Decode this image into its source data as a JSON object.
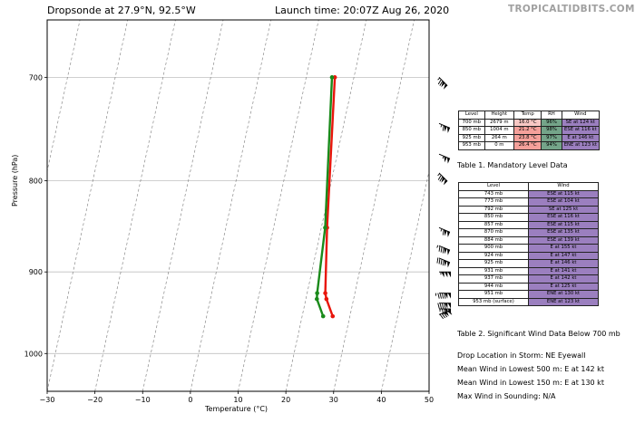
{
  "header": {
    "title_left": "Dropsonde at 27.9°N, 92.5°W",
    "title_right": "Launch time: 20:07Z Aug 26, 2020",
    "brand": "TROPICALTIDBITS.COM"
  },
  "chart_data": {
    "type": "line",
    "title": "Dropsonde at 27.9°N, 92.5°W",
    "xlabel": "Temperature (°C)",
    "ylabel": "Pressure (hPa)",
    "xlim": [
      -30,
      50
    ],
    "ylim": [
      1050,
      650
    ],
    "y_scale": "log",
    "x_ticks": [
      "−30",
      "−20",
      "−10",
      "0",
      "10",
      "20",
      "30",
      "40",
      "50"
    ],
    "x_tick_values": [
      -30,
      -20,
      -10,
      0,
      10,
      20,
      30,
      40,
      50
    ],
    "y_ticks": [
      "700",
      "800",
      "900",
      "1000"
    ],
    "y_tick_values": [
      700,
      800,
      900,
      1000
    ],
    "grid": true,
    "series": [
      {
        "role": "temperature",
        "color": "#e8160c",
        "points": [
          [
            700,
            16.0
          ],
          [
            850,
            21.2
          ],
          [
            925,
            23.8
          ],
          [
            932,
            24.3
          ],
          [
            953,
            26.4
          ]
        ]
      },
      {
        "role": "dewpoint",
        "color": "#1a8a1a",
        "points": [
          [
            700,
            15.4
          ],
          [
            850,
            20.8
          ],
          [
            925,
            22.1
          ],
          [
            932,
            22.3
          ],
          [
            953,
            24.4
          ]
        ]
      }
    ],
    "skew_t": true
  },
  "mandatory_table": {
    "headers": [
      "Level",
      "Height",
      "Temp",
      "RH",
      "Wind"
    ],
    "rows": [
      {
        "level": "700 mb",
        "height": "2679 m",
        "temp": "16.0 °C",
        "rh": "96%",
        "wind": "SE at 124 kt"
      },
      {
        "level": "850 mb",
        "height": "1004 m",
        "temp": "21.2 °C",
        "rh": "98%",
        "wind": "ESE at 116 kt"
      },
      {
        "level": "925 mb",
        "height": "264 m",
        "temp": "23.8 °C",
        "rh": "97%",
        "wind": "E at 146 kt"
      },
      {
        "level": "953 mb",
        "height": "0 m",
        "temp": "26.4 °C",
        "rh": "94%",
        "wind": "ENE at 123 kt"
      }
    ],
    "caption": "Table 1. Mandatory Level Data"
  },
  "wind_table": {
    "headers": [
      "Level",
      "Wind"
    ],
    "rows": [
      {
        "level": "743 mb",
        "wind": "ESE at 115 kt"
      },
      {
        "level": "773 mb",
        "wind": "ESE at 104 kt"
      },
      {
        "level": "792 mb",
        "wind": "SE at 125 kt"
      },
      {
        "level": "850 mb",
        "wind": "ESE at 116 kt"
      },
      {
        "level": "857 mb",
        "wind": "ESE at 115 kt"
      },
      {
        "level": "870 mb",
        "wind": "ESE at 135 kt"
      },
      {
        "level": "884 mb",
        "wind": "ESE at 139 kt"
      },
      {
        "level": "900 mb",
        "wind": "E at 155 kt"
      },
      {
        "level": "924 mb",
        "wind": "E at 147 kt"
      },
      {
        "level": "925 mb",
        "wind": "E at 146 kt"
      },
      {
        "level": "931 mb",
        "wind": "E at 141 kt"
      },
      {
        "level": "937 mb",
        "wind": "E at 142 kt"
      },
      {
        "level": "944 mb",
        "wind": "E at 125 kt"
      },
      {
        "level": "951 mb",
        "wind": "ENE at 130 kt"
      },
      {
        "level": "953 mb (surface)",
        "wind": "ENE at 123 kt"
      }
    ],
    "caption": "Table 2. Significant Wind Data Below 700 mb"
  },
  "info": {
    "line1": "Drop Location in Storm: NE Eyewall",
    "line2": "Mean Wind in Lowest 500 m:  E at 142 kt",
    "line3": "Mean Wind in Lowest 150 m:  E at 130 kt",
    "line4": "Max Wind in Sounding:  N/A"
  },
  "wind_barbs": [
    {
      "level": 700,
      "dir": "SE",
      "speed": 124
    },
    {
      "level": 743,
      "dir": "ESE",
      "speed": 115
    },
    {
      "level": 773,
      "dir": "ESE",
      "speed": 104
    },
    {
      "level": 792,
      "dir": "SE",
      "speed": 125
    },
    {
      "level": 850,
      "dir": "ESE",
      "speed": 116
    },
    {
      "level": 870,
      "dir": "ESE",
      "speed": 135
    },
    {
      "level": 884,
      "dir": "ESE",
      "speed": 139
    },
    {
      "level": 900,
      "dir": "E",
      "speed": 155
    },
    {
      "level": 925,
      "dir": "E",
      "speed": 146
    },
    {
      "level": 937,
      "dir": "E",
      "speed": 142
    },
    {
      "level": 944,
      "dir": "E",
      "speed": 125
    },
    {
      "level": 951,
      "dir": "ENE",
      "speed": 130
    }
  ],
  "colors": {
    "temp_cell": "#f4a09a",
    "rh_cell": "#74a489",
    "wind_cell": "#9b7fbf"
  }
}
